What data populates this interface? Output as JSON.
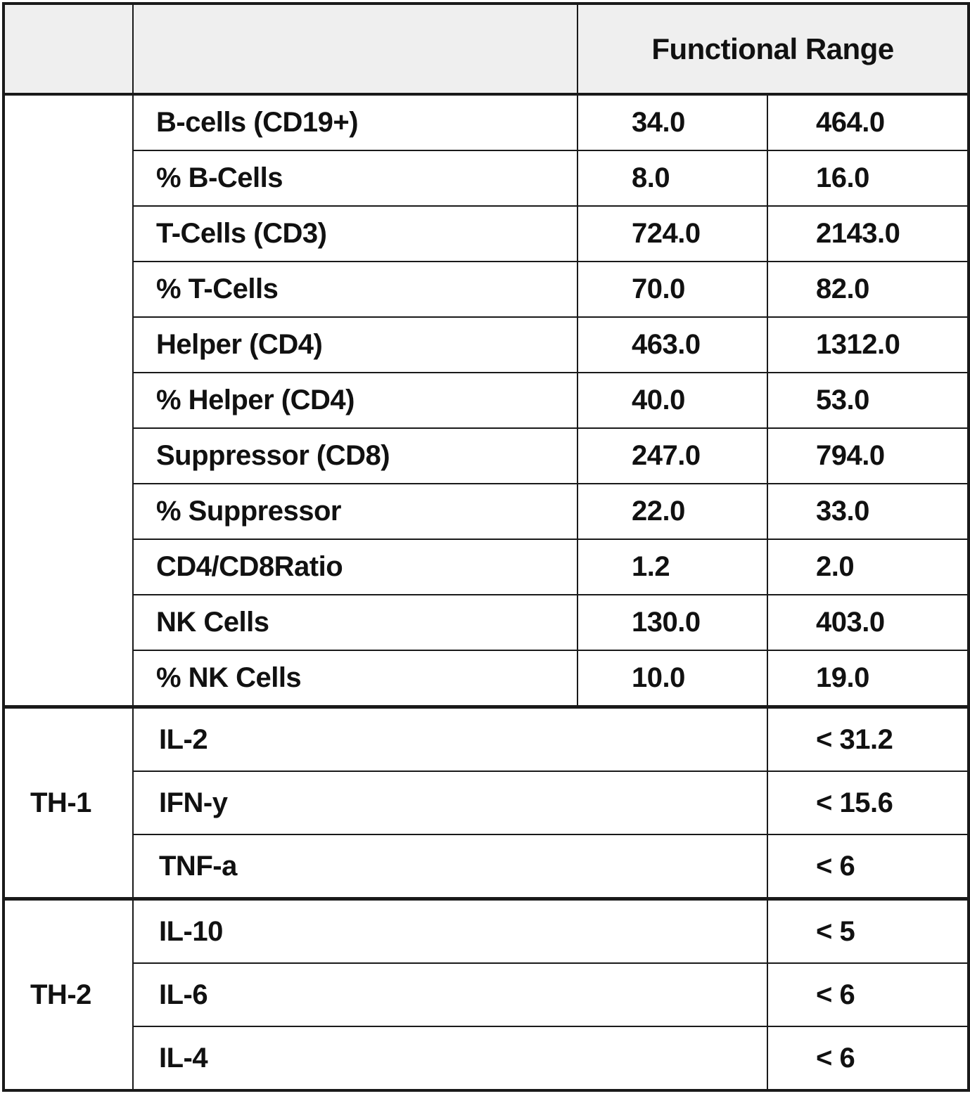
{
  "header": {
    "title": "Functional Range"
  },
  "lymphocytes": {
    "rows": [
      {
        "name": "B-cells (CD19+)",
        "low": "34.0",
        "high": "464.0"
      },
      {
        "name": "% B-Cells",
        "low": "8.0",
        "high": "16.0"
      },
      {
        "name": "T-Cells (CD3)",
        "low": "724.0",
        "high": "2143.0"
      },
      {
        "name": "% T-Cells",
        "low": "70.0",
        "high": "82.0"
      },
      {
        "name": "Helper (CD4)",
        "low": "463.0",
        "high": "1312.0"
      },
      {
        "name": "% Helper (CD4)",
        "low": "40.0",
        "high": "53.0"
      },
      {
        "name": "Suppressor (CD8)",
        "low": "247.0",
        "high": "794.0"
      },
      {
        "name": "% Suppressor",
        "low": "22.0",
        "high": "33.0"
      },
      {
        "name": "CD4/CD8Ratio",
        "low": "1.2",
        "high": "2.0"
      },
      {
        "name": "NK Cells",
        "low": "130.0",
        "high": "403.0"
      },
      {
        "name": "% NK Cells",
        "low": "10.0",
        "high": "19.0"
      }
    ]
  },
  "th1": {
    "label": "TH-1",
    "rows": [
      {
        "name": "IL-2",
        "range": "< 31.2"
      },
      {
        "name": "IFN-y",
        "range": "< 15.6"
      },
      {
        "name": "TNF-a",
        "range": "< 6"
      }
    ]
  },
  "th2": {
    "label": "TH-2",
    "rows": [
      {
        "name": "IL-10",
        "range": "< 5"
      },
      {
        "name": "IL-6",
        "range": "< 6"
      },
      {
        "name": "IL-4",
        "range": "< 6"
      }
    ]
  }
}
